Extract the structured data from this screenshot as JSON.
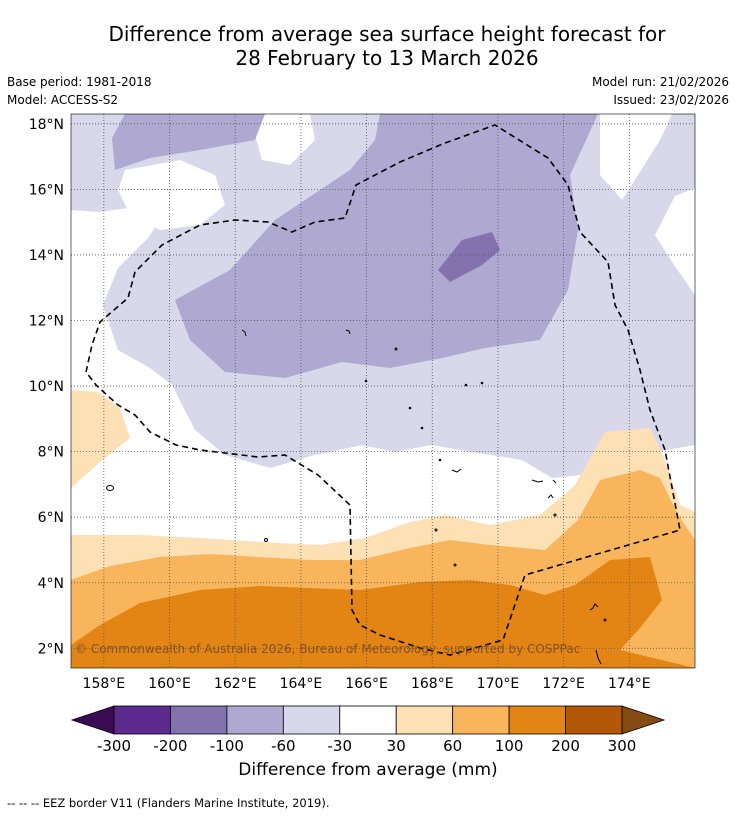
{
  "title": {
    "line1": "Difference from average sea surface height forecast for",
    "line2": "28 February to 13 March 2026"
  },
  "meta": {
    "base_period": "Base period: 1981-2018",
    "model": "Model: ACCESS-S2",
    "model_run": "Model run: 21/02/2026",
    "issued": "Issued: 23/02/2026"
  },
  "map": {
    "lon_range": [
      157,
      176
    ],
    "lat_range": [
      1.4,
      18.3
    ],
    "lon_ticks": [
      "158°E",
      "160°E",
      "162°E",
      "164°E",
      "166°E",
      "168°E",
      "170°E",
      "172°E",
      "174°E"
    ],
    "lat_ticks": [
      "18°N",
      "16°N",
      "14°N",
      "12°N",
      "10°N",
      "8°N",
      "6°N",
      "4°N",
      "2°N"
    ],
    "copyright": "© Commonwealth of Australia 2026, Bureau of Meteorology, supported by COSPPac"
  },
  "colorbar": {
    "tick_labels": [
      "-300",
      "-200",
      "-100",
      "-60",
      "-30",
      "30",
      "60",
      "100",
      "200",
      "300"
    ],
    "colors": [
      "#5b2a8c",
      "#8372ae",
      "#afa8d0",
      "#d8d8ea",
      "#ffffff",
      "#fde0b4",
      "#f8b55c",
      "#e38515",
      "#b25608"
    ],
    "extend_low_color": "#3a0a55",
    "extend_high_color": "#844b12",
    "label": "Difference from average (mm)"
  },
  "footnote": "--  --  -- EEZ border V11 (Flanders Marine Institute, 2019)."
}
